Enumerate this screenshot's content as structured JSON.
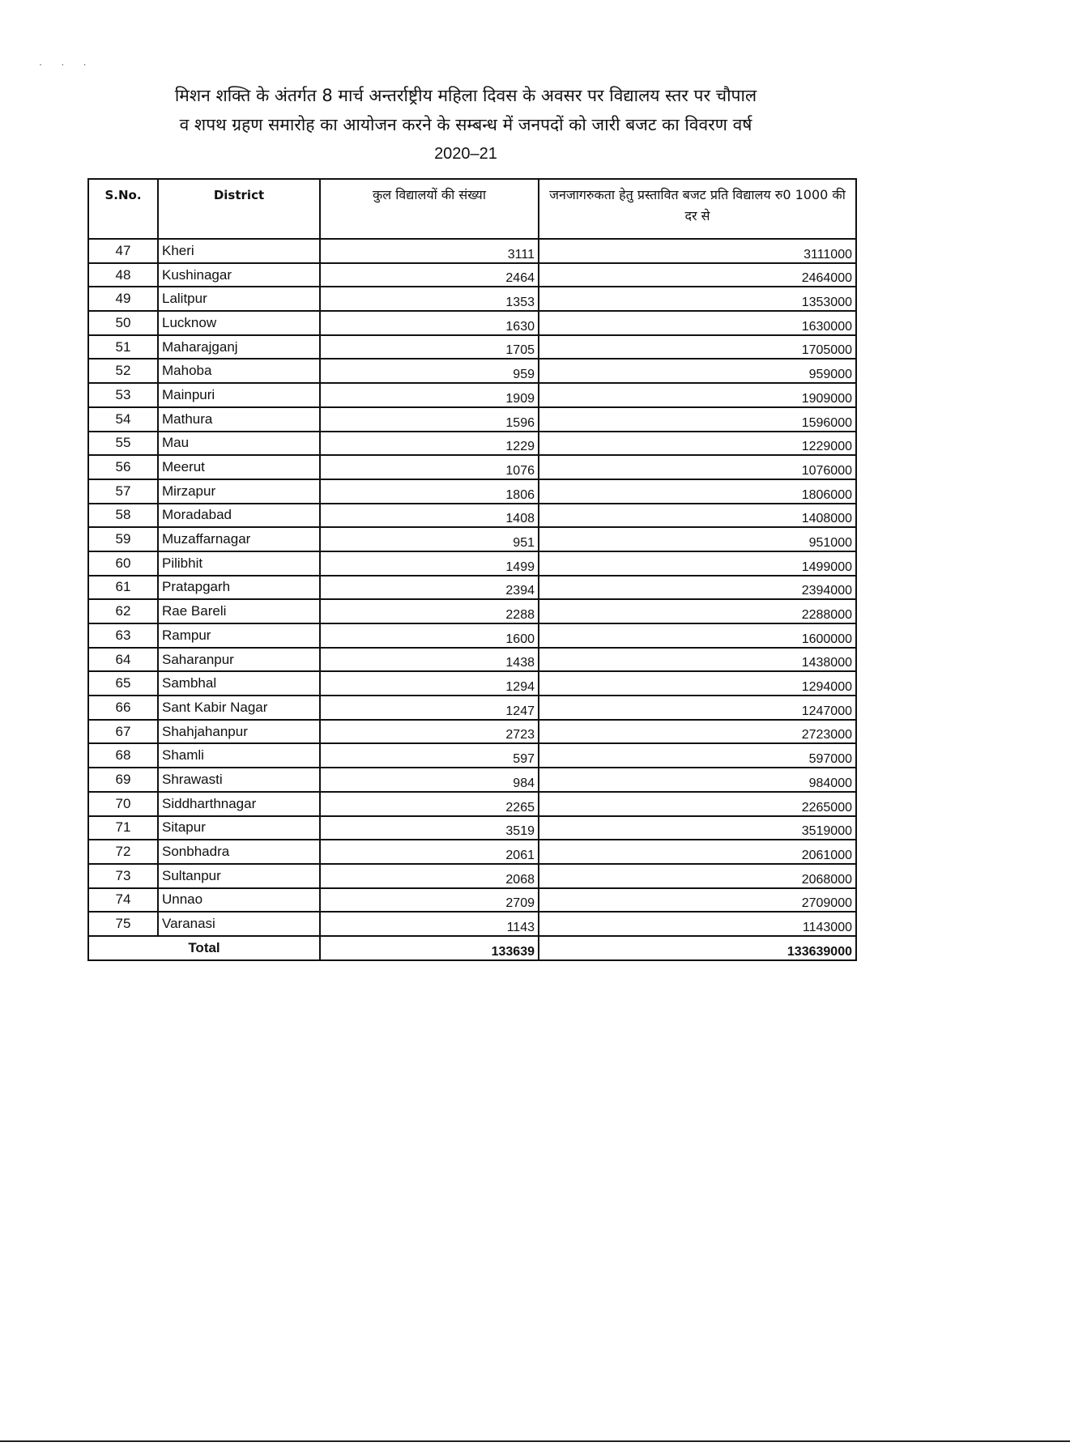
{
  "title": {
    "line1": "मिशन शक्ति के अंतर्गत 8 मार्च अन्तर्राष्ट्रीय महिला दिवस के अवसर पर विद्यालय स्तर पर चौपाल",
    "line2": "व शपथ ग्रहण समारोह का आयोजन करने के सम्बन्ध में जनपदों को जारी बजट का विवरण वर्ष",
    "year": "2020–21"
  },
  "table": {
    "headers": [
      "S.No.",
      "District",
      "कुल विद्यालयों की संख्या",
      "जनजागरुकता हेतु प्रस्तावित बजट प्रति विद्यालय रु0 1000 की दर से"
    ],
    "rows": [
      [
        "47",
        "Kheri",
        "3111",
        "3111000"
      ],
      [
        "48",
        "Kushinagar",
        "2464",
        "2464000"
      ],
      [
        "49",
        "Lalitpur",
        "1353",
        "1353000"
      ],
      [
        "50",
        "Lucknow",
        "1630",
        "1630000"
      ],
      [
        "51",
        "Maharajganj",
        "1705",
        "1705000"
      ],
      [
        "52",
        "Mahoba",
        "959",
        "959000"
      ],
      [
        "53",
        "Mainpuri",
        "1909",
        "1909000"
      ],
      [
        "54",
        "Mathura",
        "1596",
        "1596000"
      ],
      [
        "55",
        "Mau",
        "1229",
        "1229000"
      ],
      [
        "56",
        "Meerut",
        "1076",
        "1076000"
      ],
      [
        "57",
        "Mirzapur",
        "1806",
        "1806000"
      ],
      [
        "58",
        "Moradabad",
        "1408",
        "1408000"
      ],
      [
        "59",
        "Muzaffarnagar",
        "951",
        "951000"
      ],
      [
        "60",
        "Pilibhit",
        "1499",
        "1499000"
      ],
      [
        "61",
        "Pratapgarh",
        "2394",
        "2394000"
      ],
      [
        "62",
        "Rae Bareli",
        "2288",
        "2288000"
      ],
      [
        "63",
        "Rampur",
        "1600",
        "1600000"
      ],
      [
        "64",
        "Saharanpur",
        "1438",
        "1438000"
      ],
      [
        "65",
        "Sambhal",
        "1294",
        "1294000"
      ],
      [
        "66",
        "Sant Kabir Nagar",
        "1247",
        "1247000"
      ],
      [
        "67",
        "Shahjahanpur",
        "2723",
        "2723000"
      ],
      [
        "68",
        "Shamli",
        "597",
        "597000"
      ],
      [
        "69",
        "Shrawasti",
        "984",
        "984000"
      ],
      [
        "70",
        "Siddharthnagar",
        "2265",
        "2265000"
      ],
      [
        "71",
        "Sitapur",
        "3519",
        "3519000"
      ],
      [
        "72",
        "Sonbhadra",
        "2061",
        "2061000"
      ],
      [
        "73",
        "Sultanpur",
        "2068",
        "2068000"
      ],
      [
        "74",
        "Unnao",
        "2709",
        "2709000"
      ],
      [
        "75",
        "Varanasi",
        "1143",
        "1143000"
      ]
    ],
    "total": {
      "label": "Total",
      "schools": "133639",
      "budget": "133639000"
    }
  }
}
